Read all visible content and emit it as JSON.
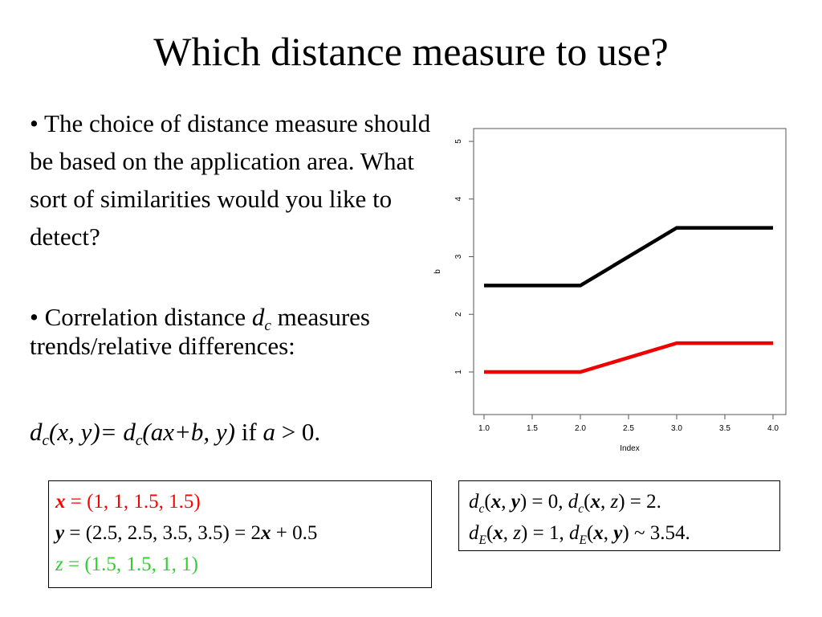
{
  "title": "Which distance measure to use?",
  "bullets": {
    "b1": "• The choice of distance measure should be based on the application area. What sort of similarities would you like to detect?",
    "b2_prefix": "• Correlation distance ",
    "b2_var": "d",
    "b2_sub": "c",
    "b2_rest": " measures trends/relative differences:"
  },
  "formula": {
    "d1": "d",
    "s1": "c",
    "p1": "(x, y)= ",
    "d2": "d",
    "s2": "c",
    "p2": "(ax+b, y)",
    "cond": " if ",
    "a": "a",
    "gt": " > 0."
  },
  "vectors": {
    "x_name": "x",
    "x_val": " = (1, 1, 1.5, 1.5)",
    "y_name": "y",
    "y_val": " = (2.5, 2.5, 3.5, 3.5) = 2",
    "y_x": "x",
    "y_tail": " + 0.5",
    "z_name": "z",
    "z_val": " = (1.5, 1.5, 1, 1)"
  },
  "distances": {
    "l1_d": "d",
    "l1_s": "c",
    "l1_a": "(",
    "l1_x": "x",
    "l1_c": ", ",
    "l1_y": "y",
    "l1_e": ") = 0, ",
    "l1_d2": "d",
    "l1_s2": "c",
    "l1_a2": "(",
    "l1_x2": "x",
    "l1_c2": ", ",
    "l1_z": "z",
    "l1_e2": ") = 2.",
    "l2_d": "d",
    "l2_s": "E",
    "l2_a": "(",
    "l2_x": "x",
    "l2_c": ", ",
    "l2_z": "z",
    "l2_e": ") = 1, ",
    "l2_d2": "d",
    "l2_s2": "E",
    "l2_a2": "(",
    "l2_x2": "x",
    "l2_c2": ", ",
    "l2_y": "y",
    "l2_e2": ") ~ 3.54."
  },
  "chart_data": {
    "type": "line",
    "xlabel": "Index",
    "ylabel": "b",
    "xlim": [
      1.0,
      4.0
    ],
    "ylim": [
      1,
      5
    ],
    "x_ticks": [
      "1.0",
      "1.5",
      "2.0",
      "2.5",
      "3.0",
      "3.5",
      "4.0"
    ],
    "y_ticks": [
      "1",
      "2",
      "3",
      "4",
      "5"
    ],
    "x": [
      1,
      2,
      3,
      4
    ],
    "series": [
      {
        "values": [
          2.5,
          2.5,
          3.5,
          3.5
        ],
        "color": "#000000"
      },
      {
        "values": [
          1,
          1,
          1.5,
          1.5
        ],
        "color": "#ee0000"
      }
    ],
    "grid": false
  }
}
